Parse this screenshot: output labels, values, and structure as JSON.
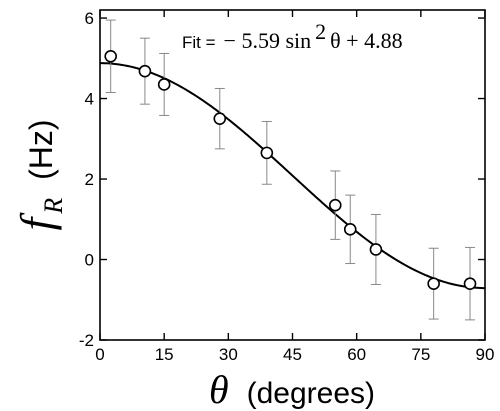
{
  "chart_data": {
    "type": "scatter",
    "xlabel": {
      "symbol": "θ",
      "unit": "(degrees)"
    },
    "ylabel": {
      "symbol": "f",
      "subscript": "R",
      "unit": "(Hz)"
    },
    "xlim": [
      0,
      90
    ],
    "ylim": [
      -2,
      6.2
    ],
    "x_ticks": [
      0,
      15,
      30,
      45,
      60,
      75,
      90
    ],
    "y_ticks": [
      -2,
      0,
      2,
      4,
      6
    ],
    "grid": false,
    "series": [
      {
        "marker": "open-circle",
        "with_error_bars": true,
        "points": [
          {
            "x": 2.5,
            "y": 5.05,
            "err": 0.9
          },
          {
            "x": 10.5,
            "y": 4.68,
            "err": 0.82
          },
          {
            "x": 15.0,
            "y": 4.35,
            "err": 0.77
          },
          {
            "x": 28.0,
            "y": 3.5,
            "err": 0.75
          },
          {
            "x": 39.0,
            "y": 2.65,
            "err": 0.78
          },
          {
            "x": 55.0,
            "y": 1.35,
            "err": 0.85
          },
          {
            "x": 58.5,
            "y": 0.75,
            "err": 0.85
          },
          {
            "x": 64.5,
            "y": 0.25,
            "err": 0.87
          },
          {
            "x": 78.0,
            "y": -0.6,
            "err": 0.88
          },
          {
            "x": 86.5,
            "y": -0.6,
            "err": 0.9
          }
        ]
      }
    ],
    "fit": {
      "label": "Fit =",
      "equation_parts": {
        "prefix": "− 5.59 sin",
        "power": "2",
        "suffix": " θ + 4.88"
      },
      "amplitude": -5.59,
      "offset": 4.88
    }
  }
}
